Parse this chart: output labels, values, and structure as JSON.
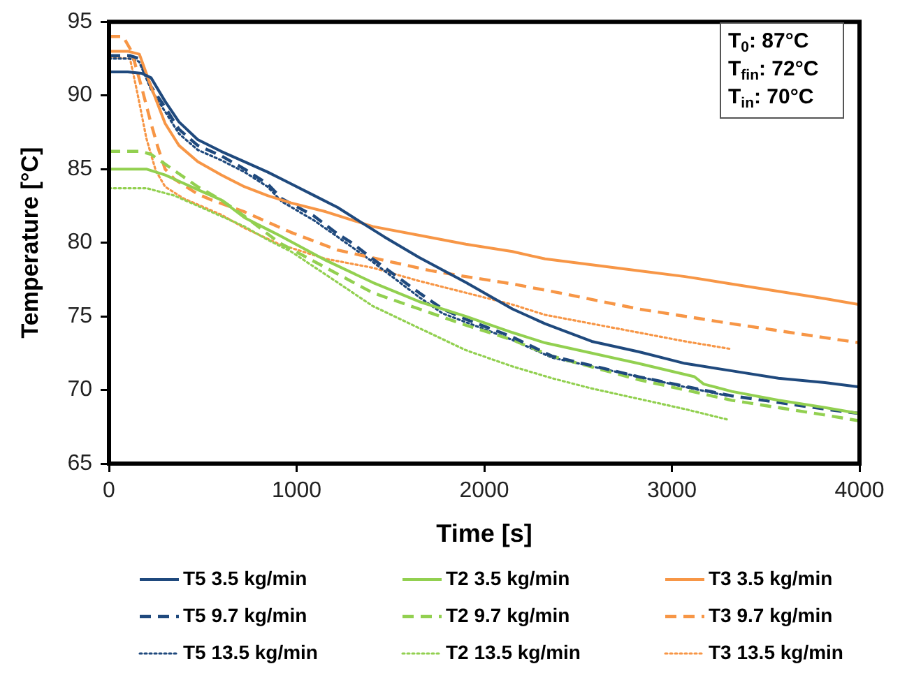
{
  "chart_data": {
    "type": "line",
    "xlabel": "Time [s]",
    "ylabel": "Temperature [°C]",
    "xlim": [
      0,
      4000
    ],
    "xticks": [
      0,
      1000,
      2000,
      3000,
      4000
    ],
    "ylim": [
      65,
      95
    ],
    "yticks": [
      65,
      70,
      75,
      80,
      85,
      90,
      95
    ],
    "grid": false,
    "legend": "bottom",
    "marker": "none",
    "annotations": [
      "T$_{0}$: 87°C",
      "T$_{fin}$: 72°C",
      "T$_{in}$: 70°C"
    ],
    "series": [
      {
        "name": "T5 3.5 kg/min",
        "color": "#1f497d",
        "line_style": "solid",
        "x": [
          0,
          100,
          174,
          224,
          299,
          373,
          473,
          598,
          722,
          845,
          970,
          1094,
          1218,
          1342,
          1467,
          1653,
          1902,
          2150,
          2324,
          2573,
          2822,
          3070,
          3319,
          3568,
          3816,
          4000
        ],
        "values": [
          91.6,
          91.6,
          91.5,
          91.2,
          89.6,
          88.2,
          87.0,
          86.2,
          85.5,
          84.8,
          84.0,
          83.2,
          82.4,
          81.4,
          80.4,
          79.0,
          77.3,
          75.5,
          74.5,
          73.3,
          72.6,
          71.8,
          71.3,
          70.8,
          70.5,
          70.2
        ]
      },
      {
        "name": "T2 3.5 kg/min",
        "color": "#92d050",
        "line_style": "solid",
        "x": [
          0,
          150,
          199,
          299,
          473,
          598,
          722,
          845,
          907,
          1156,
          1405,
          1653,
          1902,
          2150,
          2324,
          2573,
          2822,
          3120,
          3170,
          3319,
          3568,
          3816,
          4000
        ],
        "values": [
          85.0,
          85.0,
          85.0,
          84.6,
          83.6,
          82.9,
          81.7,
          80.9,
          80.5,
          78.8,
          77.3,
          76.0,
          75.0,
          73.9,
          73.2,
          72.5,
          71.8,
          70.9,
          70.4,
          69.9,
          69.3,
          68.8,
          68.4
        ]
      },
      {
        "name": "T3 3.5 kg/min",
        "color": "#f79646",
        "line_style": "solid",
        "x": [
          0,
          100,
          162,
          224,
          299,
          373,
          473,
          598,
          722,
          845,
          970,
          1156,
          1405,
          1653,
          1902,
          2150,
          2324,
          2573,
          2822,
          3070,
          3319,
          3568,
          3816,
          4000
        ],
        "values": [
          93.0,
          93.0,
          92.8,
          90.6,
          88.1,
          86.6,
          85.5,
          84.6,
          83.8,
          83.2,
          82.7,
          82.1,
          81.1,
          80.5,
          79.9,
          79.4,
          78.9,
          78.5,
          78.1,
          77.7,
          77.2,
          76.7,
          76.2,
          75.8
        ]
      },
      {
        "name": "T5 9.7 kg/min",
        "color": "#1f497d",
        "line_style": "dashed",
        "x": [
          0,
          110,
          160,
          224,
          299,
          373,
          473,
          598,
          722,
          845,
          920,
          1094,
          1218,
          1293,
          1405,
          1653,
          1778,
          1902,
          2150,
          2360,
          2822,
          3319,
          3816,
          4000
        ],
        "values": [
          92.7,
          92.7,
          92.5,
          90.6,
          89.2,
          87.7,
          86.6,
          85.9,
          85.0,
          84.0,
          83.0,
          81.8,
          80.6,
          80.0,
          78.9,
          76.6,
          75.5,
          74.8,
          73.6,
          72.3,
          70.9,
          69.6,
          68.7,
          68.4
        ]
      },
      {
        "name": "T2 9.7 kg/min",
        "color": "#92d050",
        "line_style": "dashed",
        "x": [
          0,
          170,
          224,
          348,
          473,
          598,
          722,
          907,
          1156,
          1405,
          1653,
          1902,
          2150,
          2360,
          2822,
          3319,
          3816,
          4000
        ],
        "values": [
          86.2,
          86.2,
          86.0,
          84.9,
          83.8,
          82.9,
          81.8,
          80.0,
          78.3,
          76.6,
          75.5,
          74.4,
          73.4,
          72.3,
          70.7,
          69.3,
          68.3,
          67.9
        ]
      },
      {
        "name": "T3 9.7 kg/min",
        "color": "#f79646",
        "line_style": "dashed",
        "x": [
          0,
          75,
          120,
          175,
          224,
          260,
          299,
          350,
          473,
          547,
          721,
          970,
          1218,
          1467,
          1715,
          1902,
          2150,
          2398,
          2822,
          3319,
          4000
        ],
        "values": [
          94.0,
          94.0,
          93.0,
          90.5,
          88.1,
          86.5,
          85.0,
          84.3,
          83.3,
          82.9,
          82.1,
          80.7,
          79.5,
          78.8,
          78.1,
          77.7,
          77.2,
          76.6,
          75.5,
          74.5,
          73.2
        ]
      },
      {
        "name": "T5 13.5 kg/min",
        "color": "#1f497d",
        "line_style": "dotted",
        "x": [
          0,
          110,
          160,
          224,
          299,
          373,
          473,
          598,
          722,
          845,
          920,
          1094,
          1218,
          1405,
          1653,
          1778,
          1902,
          2150,
          2360,
          2822,
          3070,
          3300
        ],
        "values": [
          92.5,
          92.5,
          92.3,
          90.4,
          88.9,
          87.4,
          86.3,
          85.6,
          84.8,
          83.8,
          82.8,
          81.5,
          80.4,
          78.7,
          76.3,
          75.2,
          74.6,
          73.4,
          72.2,
          70.9,
          70.2,
          69.6
        ]
      },
      {
        "name": "T2 13.5 kg/min",
        "color": "#92d050",
        "line_style": "dotted",
        "x": [
          0,
          200,
          348,
          473,
          598,
          722,
          845,
          970,
          1218,
          1405,
          1653,
          1902,
          2150,
          2360,
          2573,
          2822,
          3070,
          3294
        ],
        "values": [
          83.7,
          83.7,
          83.2,
          82.5,
          81.8,
          81.1,
          80.2,
          79.4,
          77.3,
          75.7,
          74.2,
          72.7,
          71.6,
          70.8,
          70.1,
          69.4,
          68.7,
          68.0
        ]
      },
      {
        "name": "T3 13.5 kg/min",
        "color": "#f79646",
        "line_style": "dotted",
        "x": [
          0,
          112,
          149,
          199,
          249,
          299,
          398,
          598,
          722,
          907,
          1156,
          1405,
          1653,
          1902,
          2150,
          2324,
          2573,
          2822,
          3070,
          3306
        ],
        "values": [
          92.6,
          92.5,
          90.3,
          87.1,
          84.9,
          83.8,
          83.0,
          81.9,
          81.0,
          79.9,
          78.9,
          78.3,
          77.4,
          76.6,
          75.8,
          75.1,
          74.5,
          73.9,
          73.3,
          72.8
        ]
      }
    ]
  }
}
